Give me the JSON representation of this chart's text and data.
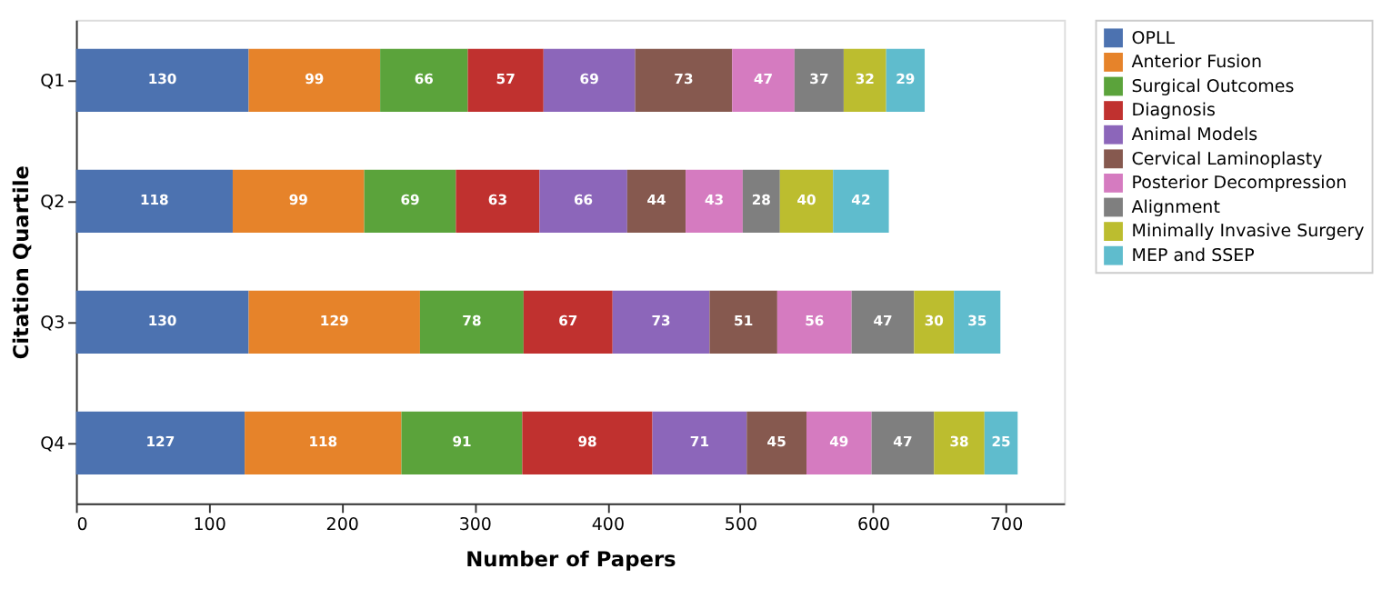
{
  "chart_data": {
    "type": "bar",
    "orientation": "horizontal",
    "stacked": true,
    "data_labels": true,
    "legend": "right",
    "grid": false,
    "xlabel": "Number of Papers",
    "ylabel": "Citation Quartile",
    "categories": [
      "Q1",
      "Q2",
      "Q3",
      "Q4"
    ],
    "xlim": [
      0,
      744
    ],
    "xticks": [
      0,
      100,
      200,
      300,
      400,
      500,
      600,
      700
    ],
    "series": [
      {
        "name": "OPLL",
        "color": "#4c72b0",
        "values": [
          130,
          118,
          130,
          127
        ]
      },
      {
        "name": "Anterior Fusion",
        "color": "#e6832a",
        "values": [
          99,
          99,
          129,
          118
        ]
      },
      {
        "name": "Surgical Outcomes",
        "color": "#5ba33b",
        "values": [
          66,
          69,
          78,
          91
        ]
      },
      {
        "name": "Diagnosis",
        "color": "#c0312f",
        "values": [
          57,
          63,
          67,
          98
        ]
      },
      {
        "name": "Animal Models",
        "color": "#8c66ba",
        "values": [
          69,
          66,
          73,
          71
        ]
      },
      {
        "name": "Cervical Laminoplasty",
        "color": "#86594f",
        "values": [
          73,
          44,
          51,
          45
        ]
      },
      {
        "name": "Posterior Decompression",
        "color": "#d57bc0",
        "values": [
          47,
          43,
          56,
          49
        ]
      },
      {
        "name": "Alignment",
        "color": "#7f7f7f",
        "values": [
          37,
          28,
          47,
          47
        ]
      },
      {
        "name": "Minimally Invasive Surgery",
        "color": "#bcbd2f",
        "values": [
          32,
          40,
          30,
          38
        ]
      },
      {
        "name": "MEP and SSEP",
        "color": "#5fbccd",
        "values": [
          29,
          42,
          35,
          25
        ]
      }
    ]
  }
}
